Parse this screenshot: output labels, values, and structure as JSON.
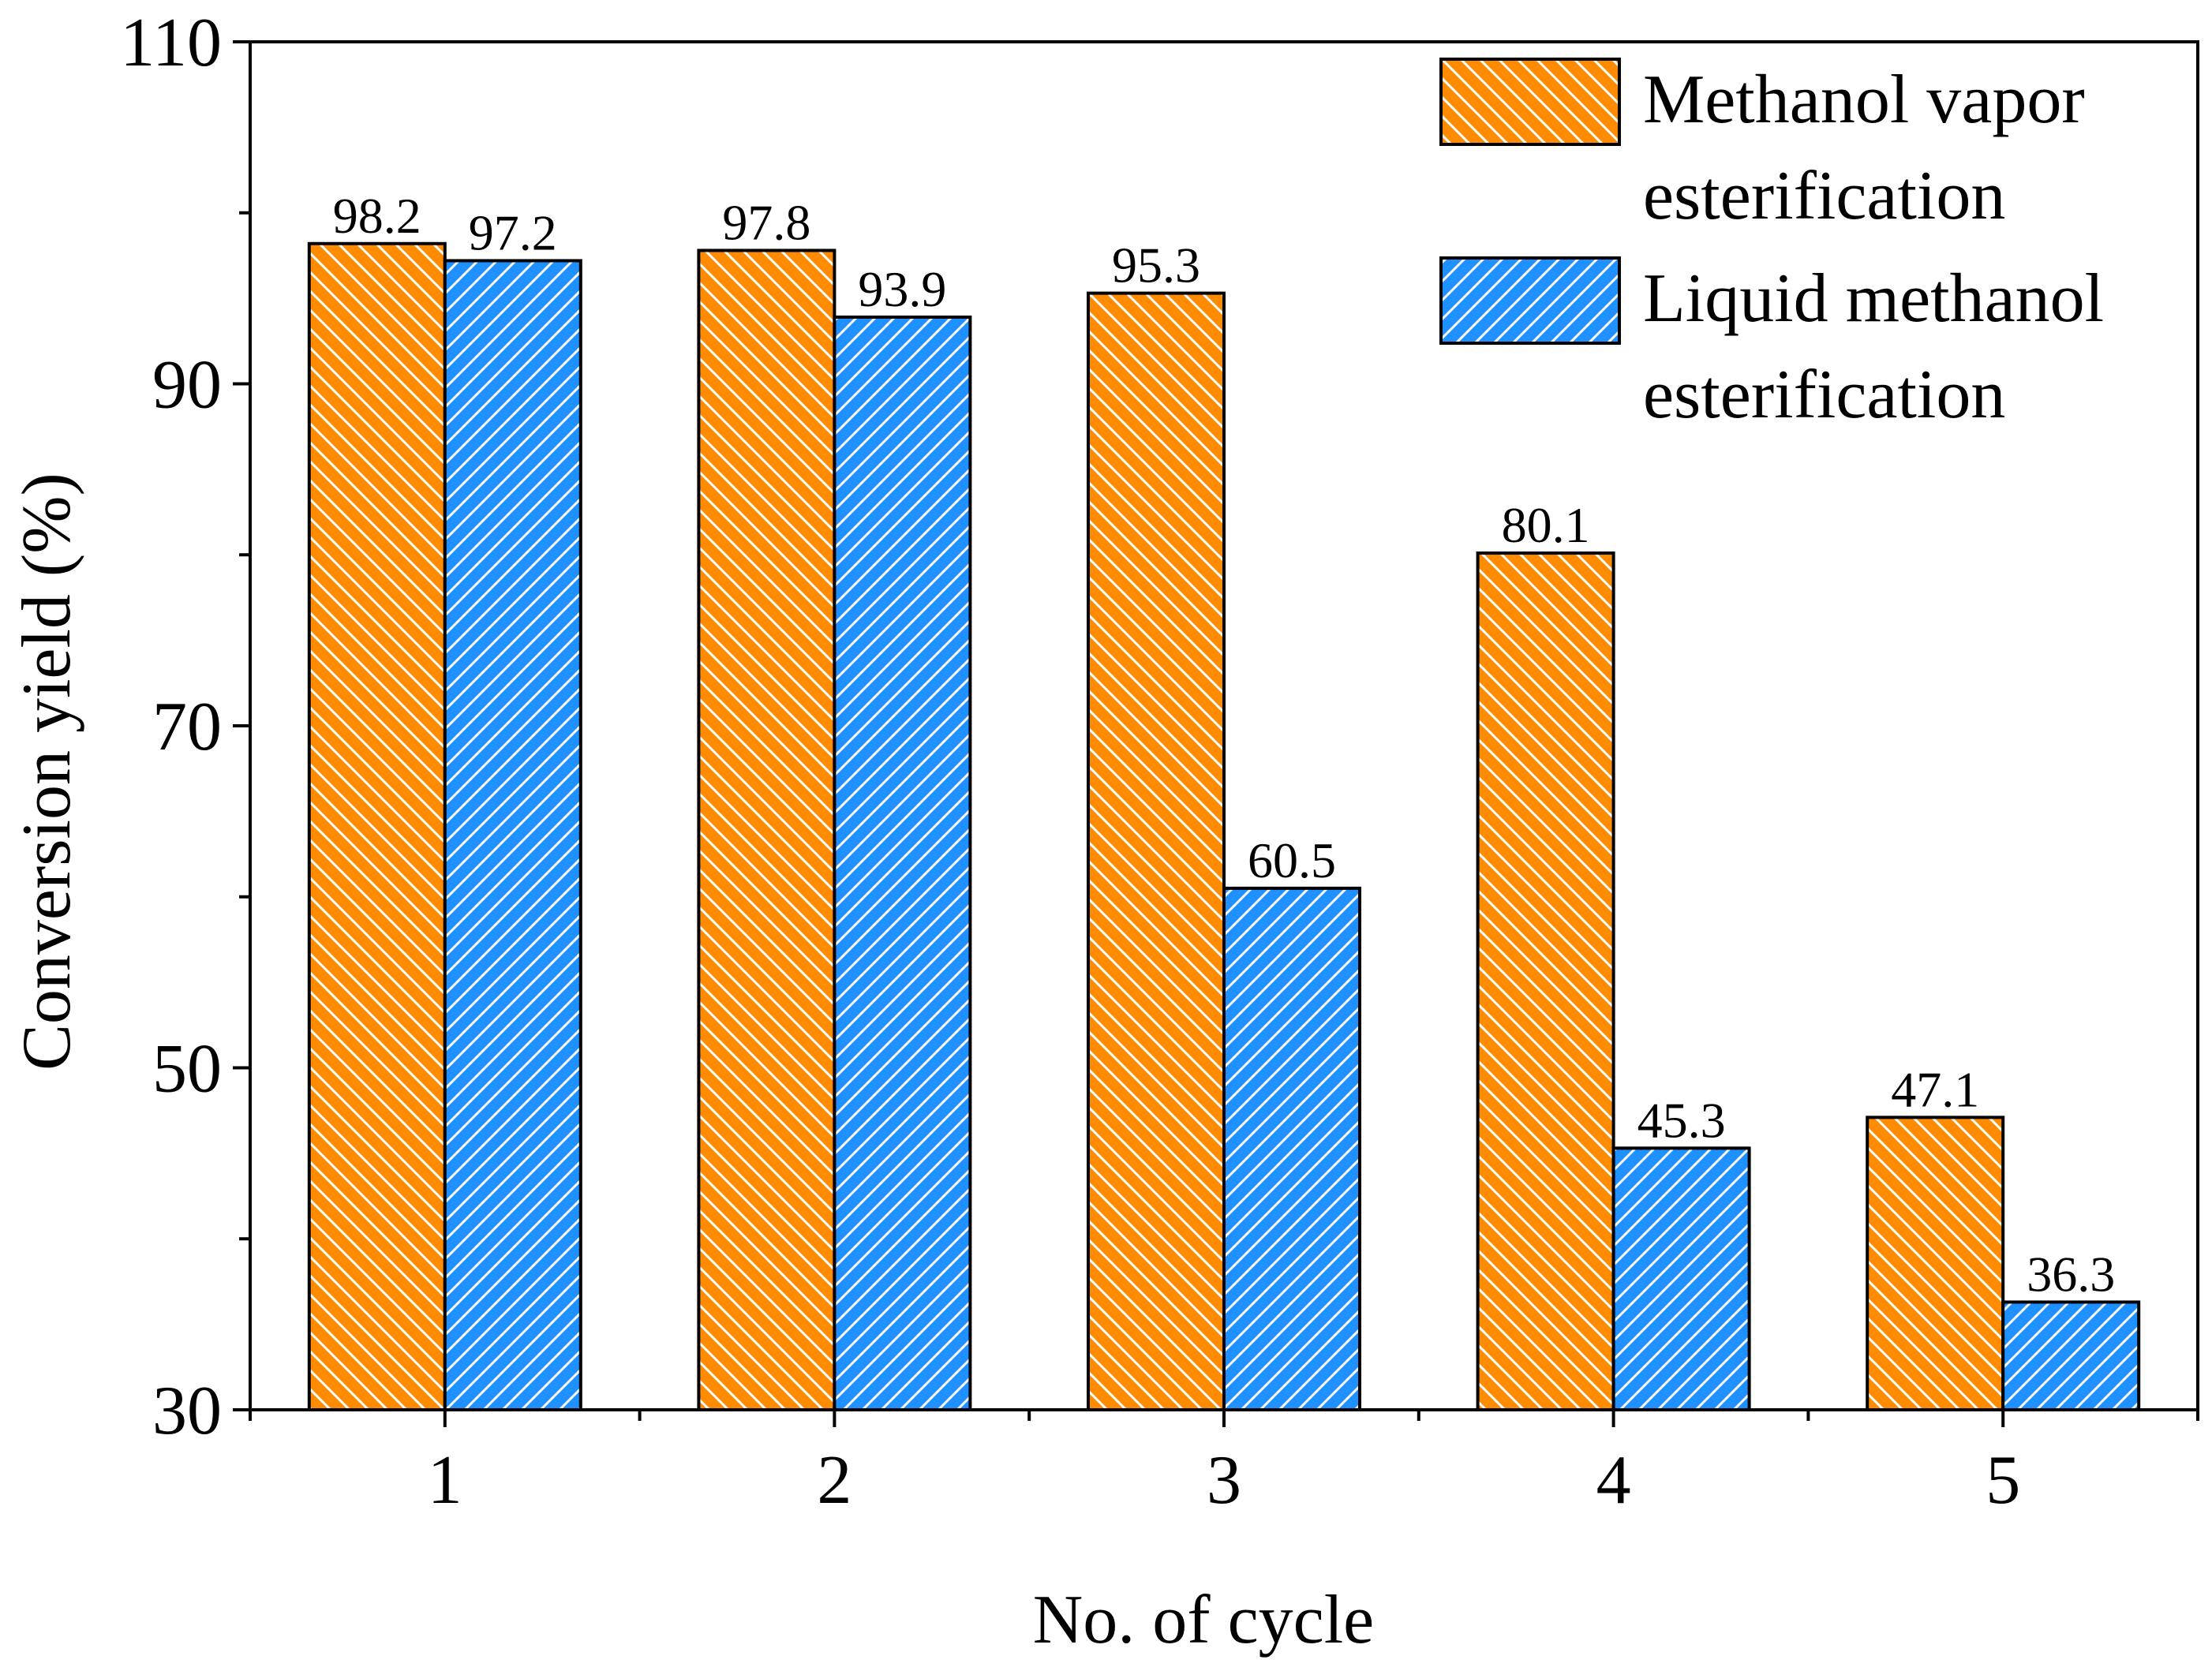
{
  "chart_data": {
    "type": "bar",
    "xlabel": "No. of cycle",
    "ylabel": "Conversion yield (%)",
    "ylim": [
      30,
      110
    ],
    "yticks": [
      30,
      50,
      70,
      90,
      110
    ],
    "yminor_step": 10,
    "categories": [
      "1",
      "2",
      "3",
      "4",
      "5"
    ],
    "series": [
      {
        "name": "Methanol vapor esterification",
        "legend_lines": [
          "Methanol vapor",
          "esterification"
        ],
        "values": [
          98.2,
          97.8,
          95.3,
          80.1,
          47.1
        ],
        "labels": [
          "98.2",
          "97.8",
          "95.3",
          "80.1",
          "47.1"
        ],
        "color": "#ff8c00",
        "hatch": "backslash"
      },
      {
        "name": "Liquid methanol esterification",
        "legend_lines": [
          "Liquid methanol",
          "esterification"
        ],
        "values": [
          97.2,
          93.9,
          60.5,
          45.3,
          36.3
        ],
        "labels": [
          "97.2",
          "93.9",
          "60.5",
          "45.3",
          "36.3"
        ],
        "color": "#1e90ff",
        "hatch": "slash"
      }
    ],
    "legend_position": "top-right",
    "grid": false
  }
}
